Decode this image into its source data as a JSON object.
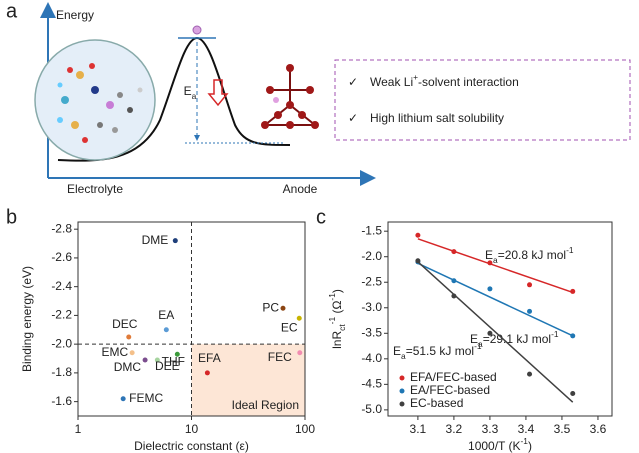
{
  "diagram": {
    "label": "a",
    "y_axis": "Energy",
    "x_labels": [
      "Electrolyte",
      "Anode"
    ],
    "barrier": [
      "E",
      "a"
    ],
    "features": [
      [
        "Weak Li",
        "+",
        "-solvent interaction"
      ],
      [
        "High lithium salt solubility"
      ]
    ]
  },
  "chart_data": [
    {
      "type": "scatter",
      "label": "b",
      "x_scale": "log",
      "x_label": "Dielectric constant (ε)",
      "y_label": "Binding energy (eV)",
      "xlim": [
        1,
        100
      ],
      "xticks": [
        1,
        10,
        100
      ],
      "ylim": [
        -1.5,
        -2.85
      ],
      "yticks": [
        -2.8,
        -2.6,
        -2.4,
        -2.2,
        {
          "value": -2,
          "label": "-2.0"
        },
        -1.8,
        -1.6
      ],
      "reference_lines": {
        "x": 10,
        "y": -2
      },
      "region_label": "Ideal Region",
      "region_color": "#fde6d6",
      "labels": [
        "DME",
        "EA",
        "DEC",
        "EMC",
        "DMC",
        "DEE",
        "THF",
        "FEMC",
        "EFA",
        "PC",
        "EC",
        "FEC"
      ],
      "x": [
        7.2,
        6.0,
        2.8,
        3.0,
        3.9,
        5.0,
        7.5,
        2.5,
        13.8,
        64,
        89,
        90
      ],
      "values": [
        -2.72,
        -2.1,
        -2.05,
        -1.94,
        -1.89,
        -1.89,
        -1.93,
        -1.62,
        -1.8,
        -2.25,
        -2.18,
        -1.94
      ],
      "colors": [
        "#1f3f7a",
        "#5b9bd5",
        "#e07b39",
        "#f4c08a",
        "#7b4d8e",
        "#a6d49f",
        "#3a9a3a",
        "#2e75b6",
        "#d62728",
        "#8b4513",
        "#c8b400",
        "#f28cb1"
      ]
    },
    {
      "type": "scatter",
      "label": "c",
      "x_label": [
        "1000/T (K",
        "-1",
        ")"
      ],
      "y_label": [
        "lnR",
        "ct",
        "-1",
        " (Ω",
        "-1",
        ")"
      ],
      "xlim": [
        3.017,
        3.639
      ],
      "xticks": [
        3.1,
        3.2,
        3.3,
        3.4,
        3.5,
        3.6
      ],
      "ylim": [
        -5.12,
        -1.32
      ],
      "yticks": [
        -1.5,
        {
          "value": -2,
          "label": "-2.0"
        },
        -2.5,
        {
          "value": -3,
          "label": "-3.0"
        },
        -3.5,
        {
          "value": -4,
          "label": "-4.0"
        },
        -4.5,
        {
          "value": -5,
          "label": "-5.0"
        }
      ],
      "series": [
        {
          "name": "EFA/FEC-based",
          "color": "#d62728",
          "x": [
            3.1,
            3.2,
            3.3,
            3.41,
            3.53
          ],
          "values": [
            -1.58,
            -1.9,
            -2.12,
            -2.55,
            -2.68
          ],
          "fit_x": [
            3.1,
            3.53
          ],
          "fit_y": [
            -1.65,
            -2.7
          ],
          "annotation": [
            "E",
            "a",
            "=20.8 kJ mol",
            "-1"
          ]
        },
        {
          "name": "EA/FEC-based",
          "color": "#1f77b4",
          "x": [
            3.1,
            3.2,
            3.3,
            3.41,
            3.53
          ],
          "values": [
            -2.1,
            -2.47,
            -2.63,
            -3.07,
            -3.55
          ],
          "fit_x": [
            3.1,
            3.53
          ],
          "fit_y": [
            -2.13,
            -3.55
          ],
          "annotation": [
            "E",
            "a",
            "=29.1 kJ mol",
            "-1"
          ]
        },
        {
          "name": "EC-based",
          "color": "#404040",
          "x": [
            3.1,
            3.2,
            3.3,
            3.41,
            3.53
          ],
          "values": [
            -2.08,
            -2.77,
            -3.5,
            -4.3,
            -4.68
          ],
          "fit_x": [
            3.1,
            3.53
          ],
          "fit_y": [
            -2.1,
            -4.85
          ],
          "annotation": [
            "E",
            "a",
            "=51.5 kJ mol",
            "-1"
          ]
        }
      ]
    }
  ]
}
